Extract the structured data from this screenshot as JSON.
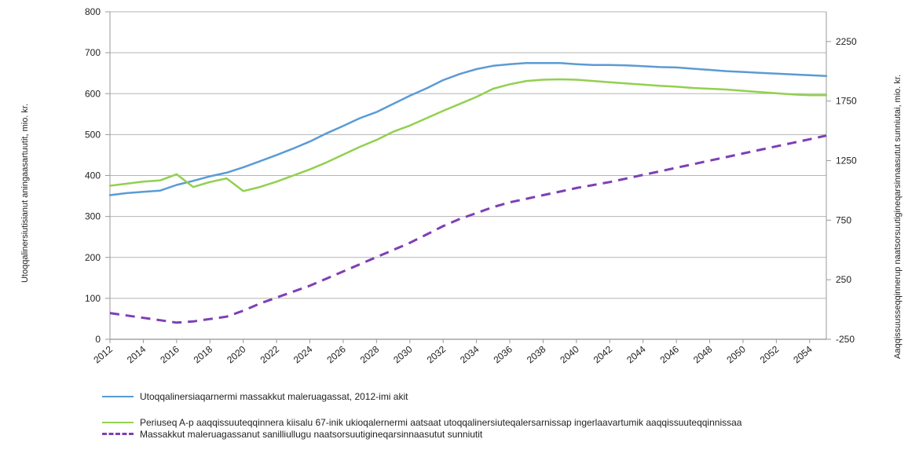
{
  "chart_data": {
    "type": "line",
    "title": "",
    "y_left_label": "Utoqqalinersiutisianut aningaasartuutit, mio. kr.",
    "y_right_label": "Aaqqissuusseqqinnerup naatsorsuutigineqarsinnaasutut sunniutai, mio. kr.",
    "ylim_left": [
      0,
      800
    ],
    "yticks_left": [
      0,
      100,
      200,
      300,
      400,
      500,
      600,
      700,
      800
    ],
    "ylim_right": [
      -250,
      2500
    ],
    "yticks_right": [
      -250,
      250,
      750,
      1250,
      1750,
      2250
    ],
    "x_ticks": [
      "2012",
      "2014",
      "2016",
      "2018",
      "2020",
      "2022",
      "2024",
      "2026",
      "2028",
      "2030",
      "2032",
      "2034",
      "2036",
      "2038",
      "2040",
      "2042",
      "2044",
      "2046",
      "2048",
      "2050",
      "2052",
      "2054"
    ],
    "x": [
      2012,
      2013,
      2014,
      2015,
      2016,
      2017,
      2018,
      2019,
      2020,
      2021,
      2022,
      2023,
      2024,
      2025,
      2026,
      2027,
      2028,
      2029,
      2030,
      2031,
      2032,
      2033,
      2034,
      2035,
      2036,
      2037,
      2038,
      2039,
      2040,
      2041,
      2042,
      2043,
      2044,
      2045,
      2046,
      2047,
      2048,
      2049,
      2050,
      2051,
      2052,
      2053,
      2054,
      2055
    ],
    "grid": true,
    "legend_position": "bottom",
    "series": [
      {
        "name": "Utoqqalinersiaqarnermi massakkut maleruagassat, 2012-imi akit",
        "axis": "left",
        "color": "#5b9bd5",
        "style": "solid",
        "values": [
          352,
          357,
          360,
          363,
          377,
          387,
          398,
          407,
          420,
          435,
          450,
          466,
          483,
          503,
          521,
          540,
          555,
          575,
          595,
          613,
          633,
          648,
          660,
          668,
          672,
          675,
          675,
          675,
          672,
          670,
          670,
          669,
          667,
          665,
          664,
          661,
          658,
          655,
          653,
          651,
          649,
          647,
          645,
          643
        ]
      },
      {
        "name": "Periuseq A-p aaqqissuuteqqinnera kiisalu 67-inik ukioqalernermi aatsaat utoqqalinersiuteqalersarnissap ingerlaavartumik aaqqissuuteqqinnissaa",
        "axis": "left",
        "color": "#92d050",
        "style": "solid",
        "values": [
          375,
          380,
          385,
          388,
          403,
          372,
          384,
          393,
          362,
          372,
          385,
          400,
          415,
          432,
          451,
          470,
          487,
          507,
          522,
          540,
          558,
          575,
          592,
          612,
          623,
          631,
          634,
          635,
          634,
          631,
          628,
          625,
          622,
          619,
          617,
          614,
          612,
          610,
          607,
          604,
          601,
          598,
          596,
          596
        ]
      },
      {
        "name": "Massakkut maleruagassanut sanilliullugu naatsorsuutigineqarsinnaasutut sunniutit",
        "axis": "right",
        "color": "#7e3fb5",
        "style": "dashed",
        "values": [
          -30,
          -50,
          -70,
          -90,
          -110,
          -100,
          -80,
          -60,
          -10,
          50,
          100,
          150,
          200,
          260,
          320,
          380,
          440,
          500,
          560,
          630,
          700,
          760,
          810,
          860,
          900,
          930,
          960,
          990,
          1020,
          1045,
          1070,
          1100,
          1130,
          1160,
          1190,
          1220,
          1250,
          1280,
          1310,
          1340,
          1370,
          1400,
          1430,
          1460
        ]
      }
    ]
  }
}
